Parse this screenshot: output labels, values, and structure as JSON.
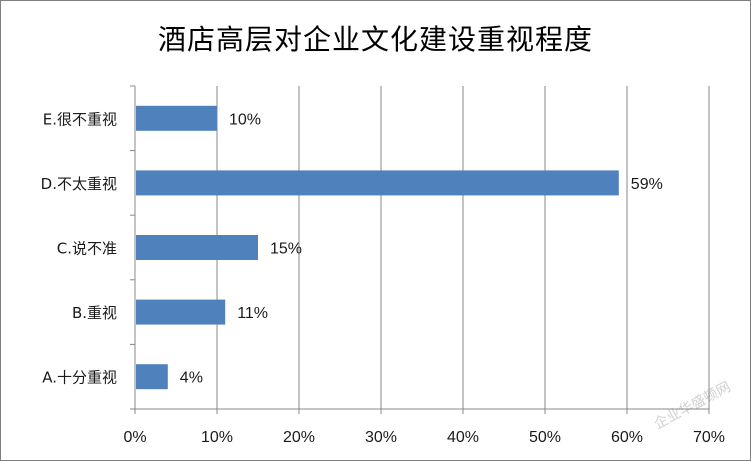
{
  "chart_data": {
    "type": "bar",
    "orientation": "horizontal",
    "title": "酒店高层对企业文化建设重视程度",
    "categories": [
      "E.很不重视",
      "D.不太重视",
      "C.说不准",
      "B.重视",
      "A.十分重视"
    ],
    "values": [
      10,
      59,
      15,
      11,
      4
    ],
    "value_labels": [
      "10%",
      "59%",
      "15%",
      "11%",
      "4%"
    ],
    "xlim": [
      0,
      70
    ],
    "x_ticks": [
      "0%",
      "10%",
      "20%",
      "30%",
      "40%",
      "50%",
      "60%",
      "70%"
    ],
    "grid": true,
    "legend": "none",
    "bar_color": "#4f81bd"
  },
  "watermark": "企业华盛顿网"
}
